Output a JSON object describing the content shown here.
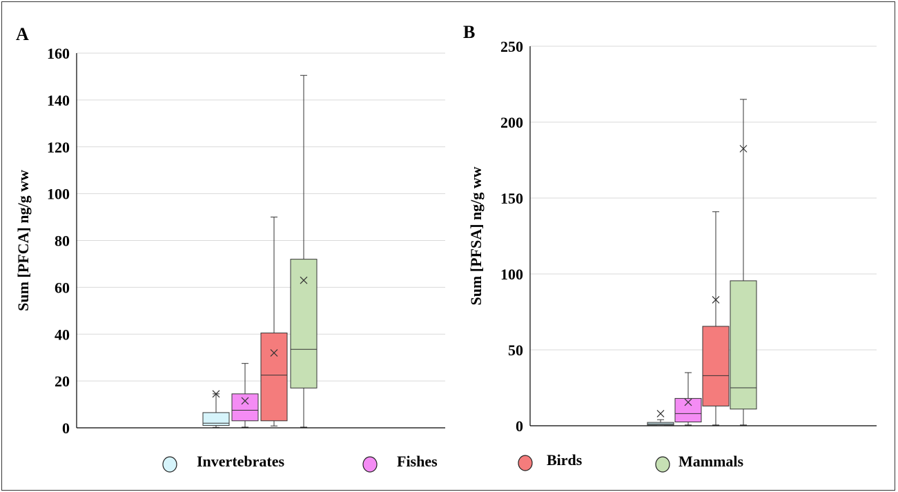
{
  "legend": [
    {
      "name": "Invertebrates",
      "color": "#d6f4fb"
    },
    {
      "name": "Fishes",
      "color": "#f48cf4"
    },
    {
      "name": "Birds",
      "color": "#f47c7c"
    },
    {
      "name": "Mammals",
      "color": "#c6e0b4"
    }
  ],
  "chart_data": [
    {
      "type": "box",
      "panel_label": "A",
      "ylabel": "Sum [PFCA] ng/g ww",
      "ylim": [
        0,
        160
      ],
      "yticks": [
        0,
        20,
        40,
        60,
        80,
        100,
        120,
        140,
        160
      ],
      "grid": true,
      "series": [
        {
          "name": "Invertebrates",
          "color": "#d6f4fb",
          "min": 0.2,
          "q1": 1,
          "median": 2,
          "q3": 6.5,
          "max": 14.5,
          "mean": 14.5
        },
        {
          "name": "Fishes",
          "color": "#f48cf4",
          "min": 0.3,
          "q1": 3,
          "median": 7.5,
          "q3": 14.5,
          "max": 27.5,
          "mean": 11.5
        },
        {
          "name": "Birds",
          "color": "#f47c7c",
          "min": 0.8,
          "q1": 3,
          "median": 22.5,
          "q3": 40.5,
          "max": 90,
          "mean": 32
        },
        {
          "name": "Mammals",
          "color": "#c6e0b4",
          "min": 0.3,
          "q1": 17,
          "median": 33.5,
          "q3": 72,
          "max": 150.5,
          "mean": 63
        }
      ]
    },
    {
      "type": "box",
      "panel_label": "B",
      "ylabel": "Sum [PFSA] ng/g ww",
      "ylim": [
        0,
        250
      ],
      "yticks": [
        0,
        50,
        100,
        150,
        200,
        250
      ],
      "grid": true,
      "series": [
        {
          "name": "Invertebrates",
          "color": "#d6f4fb",
          "min": 0.2,
          "q1": 0.5,
          "median": 1.2,
          "q3": 2.2,
          "max": 4,
          "mean": 8
        },
        {
          "name": "Fishes",
          "color": "#f48cf4",
          "min": 0.5,
          "q1": 2.5,
          "median": 8,
          "q3": 18,
          "max": 35,
          "mean": 15.5
        },
        {
          "name": "Birds",
          "color": "#f47c7c",
          "min": 0.5,
          "q1": 13,
          "median": 33,
          "q3": 65.5,
          "max": 141,
          "mean": 83
        },
        {
          "name": "Mammals",
          "color": "#c6e0b4",
          "min": 0.5,
          "q1": 11,
          "median": 25,
          "q3": 95.5,
          "max": 215,
          "mean": 182.5
        }
      ]
    }
  ]
}
